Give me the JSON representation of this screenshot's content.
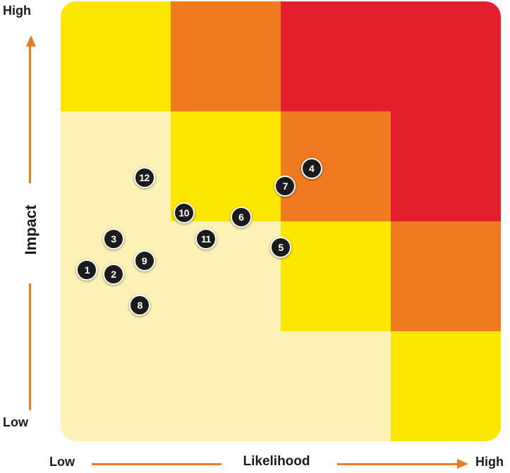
{
  "axes": {
    "y_high": "High",
    "y_low": "Low",
    "y_label": "Impact",
    "x_low": "Low",
    "x_label": "Likelihood",
    "x_high": "High"
  },
  "colors": {
    "axis_arrow": "#f07a1f",
    "pale_yellow": "#fdf1b5",
    "yellow": "#fde600",
    "orange": "#f07a1f",
    "red": "#e31e2d",
    "marker_fill": "#1b1b1b"
  },
  "grid": {
    "columns": 4,
    "rows": 4,
    "rows_top_to_bottom": [
      [
        "yellow",
        "orange",
        "red",
        "red"
      ],
      [
        "pale_yellow",
        "yellow",
        "orange",
        "red"
      ],
      [
        "pale_yellow",
        "pale_yellow",
        "yellow",
        "orange"
      ],
      [
        "pale_yellow",
        "pale_yellow",
        "pale_yellow",
        "yellow"
      ]
    ]
  },
  "risks": [
    {
      "label": "1",
      "likelihood": 0.06,
      "impact": 0.39
    },
    {
      "label": "2",
      "likelihood": 0.12,
      "impact": 0.38
    },
    {
      "label": "3",
      "likelihood": 0.12,
      "impact": 0.46
    },
    {
      "label": "4",
      "likelihood": 0.57,
      "impact": 0.62
    },
    {
      "label": "5",
      "likelihood": 0.5,
      "impact": 0.44
    },
    {
      "label": "6",
      "likelihood": 0.41,
      "impact": 0.51
    },
    {
      "label": "7",
      "likelihood": 0.51,
      "impact": 0.58
    },
    {
      "label": "8",
      "likelihood": 0.18,
      "impact": 0.31
    },
    {
      "label": "9",
      "likelihood": 0.19,
      "impact": 0.41
    },
    {
      "label": "10",
      "likelihood": 0.28,
      "impact": 0.52
    },
    {
      "label": "11",
      "likelihood": 0.33,
      "impact": 0.46
    },
    {
      "label": "12",
      "likelihood": 0.19,
      "impact": 0.6
    }
  ]
}
